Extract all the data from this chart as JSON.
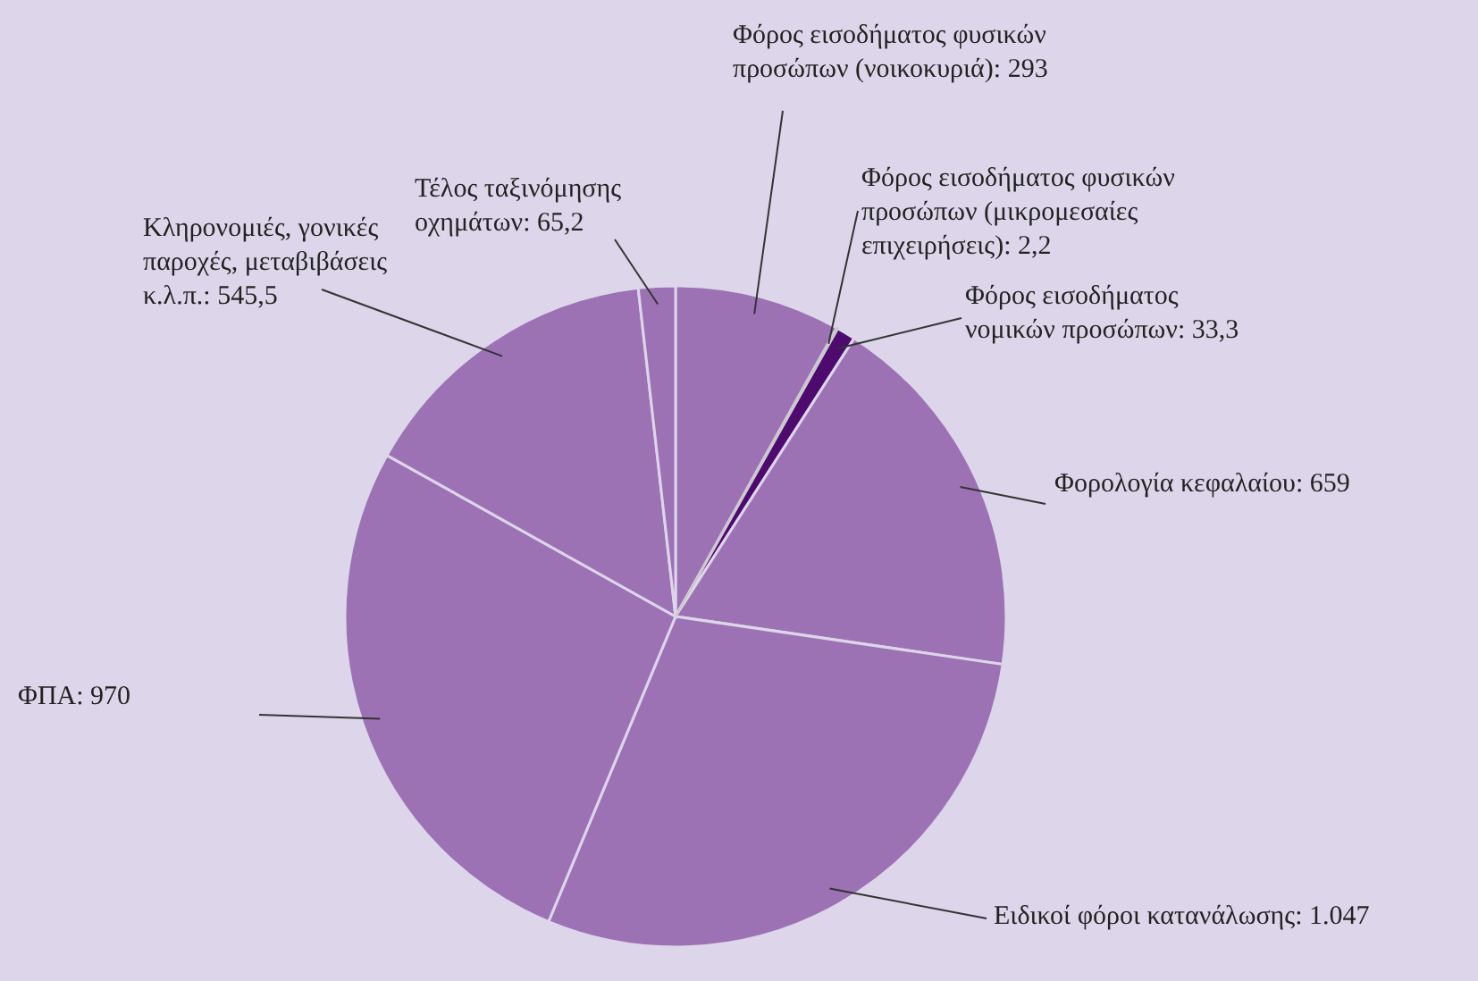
{
  "chart_data": {
    "type": "pie",
    "categories": [
      "Φόρος εισοδήματος φυσικών προσώπων (νοικοκυριά)",
      "Φόρος εισοδήματος φυσικών προσώπων (μικρομεσαίες επιχειρήσεις)",
      "Φόρος εισοδήματος νομικών προσώπων",
      "Φορολογία κεφαλαίου",
      "Ειδικοί φόροι κατανάλωσης",
      "ΦΠΑ",
      "Κληρονομιές, γονικές παροχές, μεταβιβάσεις κ.λ.π.",
      "Τέλος ταξινόμησης οχημάτων"
    ],
    "values": [
      293,
      2.2,
      33.3,
      659,
      1047,
      970,
      545.5,
      65.2
    ],
    "value_labels": [
      "293",
      "2,2",
      "33,3",
      "659",
      "1.047",
      "970",
      "545,5",
      "65,2"
    ],
    "colors": [
      "#9c72b4",
      "#c9c9c9",
      "#4e0a6e",
      "#9c72b4",
      "#9c72b4",
      "#9c72b4",
      "#9c72b4",
      "#9c72b4"
    ]
  }
}
